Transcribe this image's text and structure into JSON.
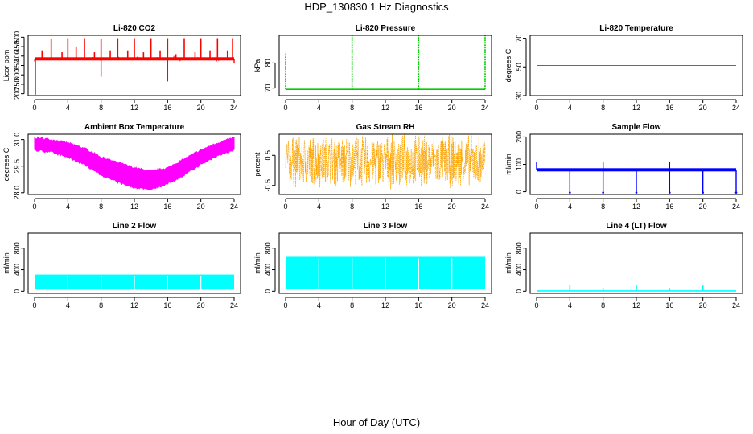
{
  "title": "HDP_130830  1 Hz Diagnostics",
  "xlabel": "Hour of Day (UTC)",
  "x_ticks": [
    0,
    4,
    8,
    12,
    16,
    20,
    24
  ],
  "chart_data": [
    {
      "type": "line",
      "title": "Li-820 CO2",
      "ylabel": "Licor ppm",
      "xlim": [
        0,
        24
      ],
      "ylim": [
        190,
        510
      ],
      "yticks": [
        200,
        250,
        300,
        350,
        400,
        450,
        500
      ],
      "color": "#ff0000",
      "style": "co2_spikes",
      "series": [
        {
          "baseline": 385,
          "band": 8,
          "spikes_up": [
            [
              0.9,
              430
            ],
            [
              2,
              490
            ],
            [
              3.3,
              420
            ],
            [
              4,
              495
            ],
            [
              5,
              450
            ],
            [
              6,
              495
            ],
            [
              7.2,
              420
            ],
            [
              8,
              490
            ],
            [
              9.1,
              430
            ],
            [
              10,
              495
            ],
            [
              11.2,
              430
            ],
            [
              12,
              495
            ],
            [
              13.1,
              420
            ],
            [
              14,
              495
            ],
            [
              15.1,
              430
            ],
            [
              16,
              495
            ],
            [
              17,
              410
            ],
            [
              18,
              495
            ],
            [
              19.3,
              420
            ],
            [
              20,
              495
            ],
            [
              21.1,
              430
            ],
            [
              22,
              495
            ],
            [
              23.2,
              430
            ],
            [
              23.8,
              495
            ]
          ],
          "spikes_down": [
            [
              0.1,
              195
            ],
            [
              8,
              290
            ],
            [
              16,
              265
            ],
            [
              24,
              360
            ]
          ]
        }
      ]
    },
    {
      "type": "line",
      "title": "Li-820 Pressure",
      "ylabel": "kPa",
      "xlim": [
        0,
        24
      ],
      "ylim": [
        67,
        91
      ],
      "yticks": [
        70,
        80
      ],
      "color": "#00cc00",
      "style": "pressure",
      "series": [
        {
          "baseline": 69.5,
          "spikes": [
            [
              0,
              84
            ],
            [
              8,
              91
            ],
            [
              16,
              91
            ],
            [
              24,
              91
            ]
          ]
        }
      ]
    },
    {
      "type": "line",
      "title": "Li-820 Temperature",
      "ylabel": "degrees C",
      "xlim": [
        0,
        24
      ],
      "ylim": [
        30,
        72
      ],
      "yticks": [
        30,
        50,
        70
      ],
      "color": "#ff00ff",
      "style": "flat",
      "series": [
        {
          "values": [
            51,
            51
          ]
        }
      ]
    },
    {
      "type": "area",
      "title": "Ambient Box Temperature",
      "ylabel": "degrees C",
      "xlim": [
        0,
        24
      ],
      "ylim": [
        27.9,
        31.3
      ],
      "yticks": [
        28.0,
        29.5,
        31.0
      ],
      "ytick_labels": [
        "28.0",
        "29.5",
        "31.0"
      ],
      "color": "#ff00ff",
      "style": "envelope",
      "series": [
        {
          "x": [
            0,
            2,
            4,
            6,
            8,
            10,
            12,
            14,
            16,
            18,
            20,
            22,
            24
          ],
          "upper": [
            31.1,
            31.0,
            30.8,
            30.5,
            30.0,
            29.7,
            29.4,
            29.2,
            29.4,
            29.9,
            30.4,
            30.8,
            31.1
          ],
          "lower": [
            30.4,
            30.3,
            30.0,
            29.6,
            29.0,
            28.6,
            28.3,
            28.2,
            28.5,
            29.0,
            29.6,
            30.1,
            30.4
          ]
        }
      ]
    },
    {
      "type": "line",
      "title": "Gas Stream RH",
      "ylabel": "percent",
      "xlim": [
        0,
        24
      ],
      "ylim": [
        -0.8,
        1.2
      ],
      "yticks": [
        -0.5,
        0.5
      ],
      "color": "#ffa500",
      "style": "noise",
      "series": [
        {
          "center": 0.3,
          "amp": 0.95
        }
      ]
    },
    {
      "type": "line",
      "title": "Sample Flow",
      "ylabel": "ml/min",
      "xlim": [
        0,
        24
      ],
      "ylim": [
        -10,
        210
      ],
      "yticks": [
        0,
        100,
        200
      ],
      "color": "#0000ff",
      "style": "flow_drops",
      "series": [
        {
          "baseline": 80,
          "band": 4,
          "drops": [
            [
              4,
              -3
            ],
            [
              8,
              -3
            ],
            [
              12,
              -3
            ],
            [
              16,
              -3
            ],
            [
              20,
              -3
            ],
            [
              24,
              -3
            ]
          ],
          "ups": [
            [
              0,
              110
            ],
            [
              8,
              107
            ],
            [
              16,
              110
            ]
          ]
        }
      ]
    },
    {
      "type": "area",
      "title": "Line 2 Flow",
      "ylabel": "ml/min",
      "xlim": [
        0,
        24
      ],
      "ylim": [
        -40,
        1080
      ],
      "yticks": [
        0,
        400,
        800
      ],
      "color": "#00ffff",
      "style": "band",
      "series": [
        {
          "lower": 30,
          "upper": 310,
          "gaps": [
            4,
            8,
            12,
            16,
            20
          ]
        }
      ]
    },
    {
      "type": "area",
      "title": "Line 3 Flow",
      "ylabel": "ml/min",
      "xlim": [
        0,
        24
      ],
      "ylim": [
        -40,
        1080
      ],
      "yticks": [
        0,
        400,
        800
      ],
      "color": "#00ffff",
      "style": "band",
      "series": [
        {
          "lower": 40,
          "upper": 640,
          "gaps": [
            4,
            8,
            12,
            16,
            20
          ]
        }
      ]
    },
    {
      "type": "line",
      "title": "Line 4 (LT) Flow",
      "ylabel": "ml/min",
      "xlim": [
        0,
        24
      ],
      "ylim": [
        -40,
        1080
      ],
      "yticks": [
        0,
        400,
        800
      ],
      "color": "#00ffff",
      "style": "pressure",
      "series": [
        {
          "baseline": 5,
          "spikes": [
            [
              4,
              110
            ],
            [
              8,
              60
            ],
            [
              12,
              110
            ],
            [
              16,
              60
            ],
            [
              20,
              110
            ]
          ]
        }
      ]
    }
  ]
}
